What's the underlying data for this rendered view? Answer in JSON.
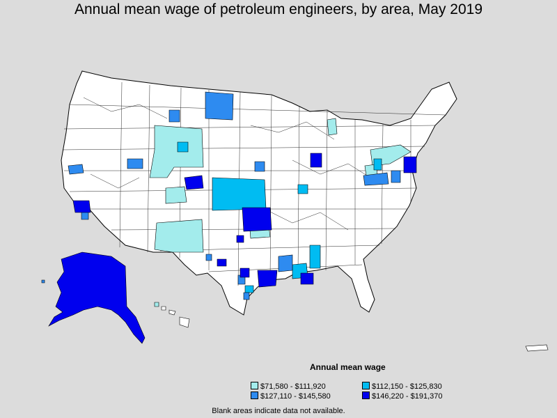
{
  "title": "Annual mean wage of petroleum engineers, by area, May 2019",
  "legend": {
    "title": "Annual mean wage",
    "items": [
      {
        "label": "$71,580 - $111,920",
        "color": "#a3ecec"
      },
      {
        "label": "$112,150 - $125,830",
        "color": "#00bcf2"
      },
      {
        "label": "$127,110 - $145,580",
        "color": "#2e8bf0"
      },
      {
        "label": "$146,220 - $191,370",
        "color": "#0000ee"
      }
    ]
  },
  "footnote": "Blank areas indicate data not available.",
  "colors": {
    "background": "#dcdcdc",
    "no_data": "#ffffff",
    "border": "#000000"
  }
}
